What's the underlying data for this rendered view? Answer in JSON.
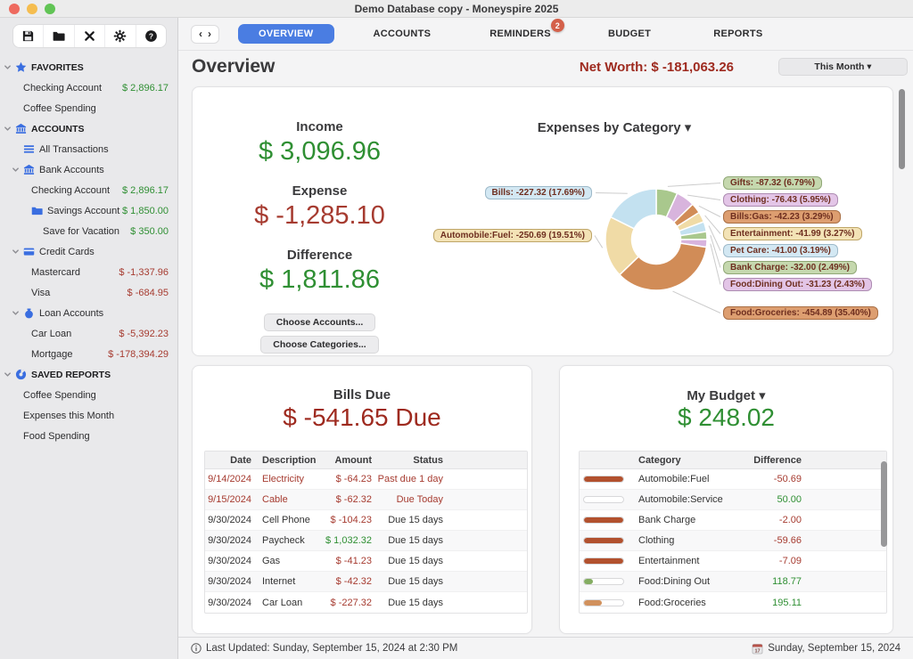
{
  "window": {
    "title": "Demo Database copy - Moneyspire 2025"
  },
  "toolbar": {
    "buttons": [
      "save",
      "open",
      "tools",
      "settings",
      "help"
    ]
  },
  "sidebar": {
    "rows": [
      {
        "level": 0,
        "chevron": true,
        "icon": "star",
        "label": "FAVORITES"
      },
      {
        "level": 1,
        "label": "Checking Account",
        "amount": "$ 2,896.17",
        "cls": "green"
      },
      {
        "level": 1,
        "label": "Coffee Spending"
      },
      {
        "level": 0,
        "chevron": true,
        "icon": "bank",
        "label": "ACCOUNTS"
      },
      {
        "level": 1,
        "icon": "list",
        "label": "All Transactions"
      },
      {
        "level": 1,
        "chevron": true,
        "icon": "bank",
        "label": "Bank Accounts"
      },
      {
        "level": 2,
        "label": "Checking Account",
        "amount": "$ 2,896.17",
        "cls": "green"
      },
      {
        "level": 2,
        "icon": "folder",
        "label": "Savings Account",
        "amount": "$ 1,850.00",
        "cls": "green"
      },
      {
        "level": 3,
        "label": "Save for Vacation",
        "amount": "$ 350.00",
        "cls": "green"
      },
      {
        "level": 1,
        "chevron": true,
        "icon": "card",
        "label": "Credit Cards"
      },
      {
        "level": 2,
        "label": "Mastercard",
        "amount": "$ -1,337.96",
        "cls": "red"
      },
      {
        "level": 2,
        "label": "Visa",
        "amount": "$ -684.95",
        "cls": "red"
      },
      {
        "level": 1,
        "chevron": true,
        "icon": "bag",
        "label": "Loan Accounts"
      },
      {
        "level": 2,
        "label": "Car Loan",
        "amount": "$ -5,392.23",
        "cls": "red"
      },
      {
        "level": 2,
        "label": "Mortgage",
        "amount": "$ -178,394.29",
        "cls": "red"
      },
      {
        "level": 0,
        "chevron": true,
        "icon": "pie",
        "label": "SAVED REPORTS"
      },
      {
        "level": 1,
        "label": "Coffee Spending"
      },
      {
        "level": 1,
        "label": "Expenses this Month"
      },
      {
        "level": 1,
        "label": "Food Spending"
      }
    ]
  },
  "tabs": [
    {
      "label": "OVERVIEW",
      "active": true
    },
    {
      "label": "ACCOUNTS"
    },
    {
      "label": "REMINDERS",
      "badge": "2"
    },
    {
      "label": "BUDGET"
    },
    {
      "label": "REPORTS"
    }
  ],
  "header": {
    "title": "Overview",
    "net_worth": "Net Worth: $ -181,063.26",
    "period_button": "This Month ▾"
  },
  "summary": {
    "income_label": "Income",
    "income": "$ 3,096.96",
    "expense_label": "Expense",
    "expense": "$ -1,285.10",
    "difference_label": "Difference",
    "difference": "$ 1,811.86",
    "choose_accounts": "Choose Accounts...",
    "choose_categories": "Choose Categories..."
  },
  "chart_data": {
    "type": "pie",
    "title": "Expenses by Category ▾",
    "legend_position": "callout-labels",
    "slices": [
      {
        "label": "Gifts",
        "value": -87.32,
        "pct": 6.79,
        "display": "Gifts: -87.32 (6.79%)",
        "color": "#a9c88d",
        "pill_bg": "#c5d8ae",
        "pill_border": "#91a877",
        "side": "right"
      },
      {
        "label": "Clothing",
        "value": -76.43,
        "pct": 5.95,
        "display": "Clothing: -76.43 (5.95%)",
        "color": "#d8b4dd",
        "pill_bg": "#e3c5e7",
        "pill_border": "#ad8cb2",
        "side": "right"
      },
      {
        "label": "Bills:Gas",
        "value": -42.23,
        "pct": 3.29,
        "display": "Bills:Gas: -42.23 (3.29%)",
        "color": "#d18c57",
        "pill_bg": "#dd9e70",
        "pill_border": "#a96f45",
        "side": "right"
      },
      {
        "label": "Entertainment",
        "value": -41.99,
        "pct": 3.27,
        "display": "Entertainment: -41.99 (3.27%)",
        "color": "#f0dba6",
        "pill_bg": "#f3e3b6",
        "pill_border": "#bfa668",
        "side": "right"
      },
      {
        "label": "Pet Care",
        "value": -41.0,
        "pct": 3.19,
        "display": "Pet Care: -41.00 (3.19%)",
        "color": "#c3e1f0",
        "pill_bg": "#d3e8f3",
        "pill_border": "#9db9c9",
        "side": "right"
      },
      {
        "label": "Bank Charge",
        "value": -32.0,
        "pct": 2.49,
        "display": "Bank Charge: -32.00 (2.49%)",
        "color": "#a9c88d",
        "pill_bg": "#c5d8ae",
        "pill_border": "#91a877",
        "side": "right"
      },
      {
        "label": "Food:Dining Out",
        "value": -31.23,
        "pct": 2.43,
        "display": "Food:Dining Out: -31.23 (2.43%)",
        "color": "#d8b4dd",
        "pill_bg": "#e3c5e7",
        "pill_border": "#ad8cb2",
        "side": "right"
      },
      {
        "label": "Food:Groceries",
        "value": -454.89,
        "pct": 35.4,
        "display": "Food:Groceries: -454.89 (35.40%)",
        "color": "#d18c57",
        "pill_bg": "#dd9e70",
        "pill_border": "#a96f45",
        "side": "right"
      },
      {
        "label": "Automobile:Fuel",
        "value": -250.69,
        "pct": 19.51,
        "display": "Automobile:Fuel: -250.69 (19.51%)",
        "color": "#f0dba6",
        "pill_bg": "#f3e3b6",
        "pill_border": "#bfa668",
        "side": "left"
      },
      {
        "label": "Bills",
        "value": -227.32,
        "pct": 17.69,
        "display": "Bills: -227.32 (17.69%)",
        "color": "#c3e1f0",
        "pill_bg": "#d3e8f3",
        "pill_border": "#9db9c9",
        "side": "left"
      }
    ]
  },
  "bills_due": {
    "title": "Bills Due",
    "total": "$ -541.65 Due",
    "columns": [
      "Date",
      "Description",
      "Amount",
      "Status"
    ],
    "rows": [
      {
        "date": "9/14/2024",
        "description": "Electricity",
        "amount": "$ -64.23",
        "status": "Past due 1 day",
        "overdue": true,
        "amount_cls": "red"
      },
      {
        "date": "9/15/2024",
        "description": "Cable",
        "amount": "$ -62.32",
        "status": "Due Today",
        "overdue": true,
        "amount_cls": "red"
      },
      {
        "date": "9/30/2024",
        "description": "Cell Phone",
        "amount": "$ -104.23",
        "status": "Due 15 days",
        "overdue": false,
        "amount_cls": "red"
      },
      {
        "date": "9/30/2024",
        "description": "Paycheck",
        "amount": "$ 1,032.32",
        "status": "Due 15 days",
        "overdue": false,
        "amount_cls": "green"
      },
      {
        "date": "9/30/2024",
        "description": "Gas",
        "amount": "$ -41.23",
        "status": "Due 15 days",
        "overdue": false,
        "amount_cls": "red"
      },
      {
        "date": "9/30/2024",
        "description": "Internet",
        "amount": "$ -42.32",
        "status": "Due 15 days",
        "overdue": false,
        "amount_cls": "red"
      },
      {
        "date": "9/30/2024",
        "description": "Car Loan",
        "amount": "$ -227.32",
        "status": "Due 15 days",
        "overdue": false,
        "amount_cls": "red"
      }
    ]
  },
  "budget": {
    "title": "My Budget ▾",
    "total": "$ 248.02",
    "columns": [
      "",
      "Category",
      "Difference"
    ],
    "rows": [
      {
        "category": "Automobile:Fuel",
        "difference": "-50.69",
        "cls": "red",
        "bar_pct": 100,
        "bar_color": "#b2512e"
      },
      {
        "category": "Automobile:Service",
        "difference": "50.00",
        "cls": "green",
        "bar_pct": 0,
        "bar_color": "#ffffff"
      },
      {
        "category": "Bank Charge",
        "difference": "-2.00",
        "cls": "red",
        "bar_pct": 100,
        "bar_color": "#b2512e"
      },
      {
        "category": "Clothing",
        "difference": "-59.66",
        "cls": "red",
        "bar_pct": 100,
        "bar_color": "#b2512e"
      },
      {
        "category": "Entertainment",
        "difference": "-7.09",
        "cls": "red",
        "bar_pct": 100,
        "bar_color": "#b2512e"
      },
      {
        "category": "Food:Dining Out",
        "difference": "118.77",
        "cls": "green",
        "bar_pct": 22,
        "bar_color": "#84ad62"
      },
      {
        "category": "Food:Groceries",
        "difference": "195.11",
        "cls": "green",
        "bar_pct": 45,
        "bar_color": "#d1915d"
      }
    ]
  },
  "status_bar": {
    "last_updated": "Last Updated: Sunday, September 15, 2024 at 2:30 PM",
    "date": "Sunday, September 15, 2024"
  },
  "colors": {
    "green": "#2f8f33",
    "red": "#a63b30",
    "dark_red": "#9e2a1f",
    "tab_blue": "#4a7de2",
    "badge": "#d4604a",
    "sidebar_icon_blue": "#3a6ee0"
  }
}
